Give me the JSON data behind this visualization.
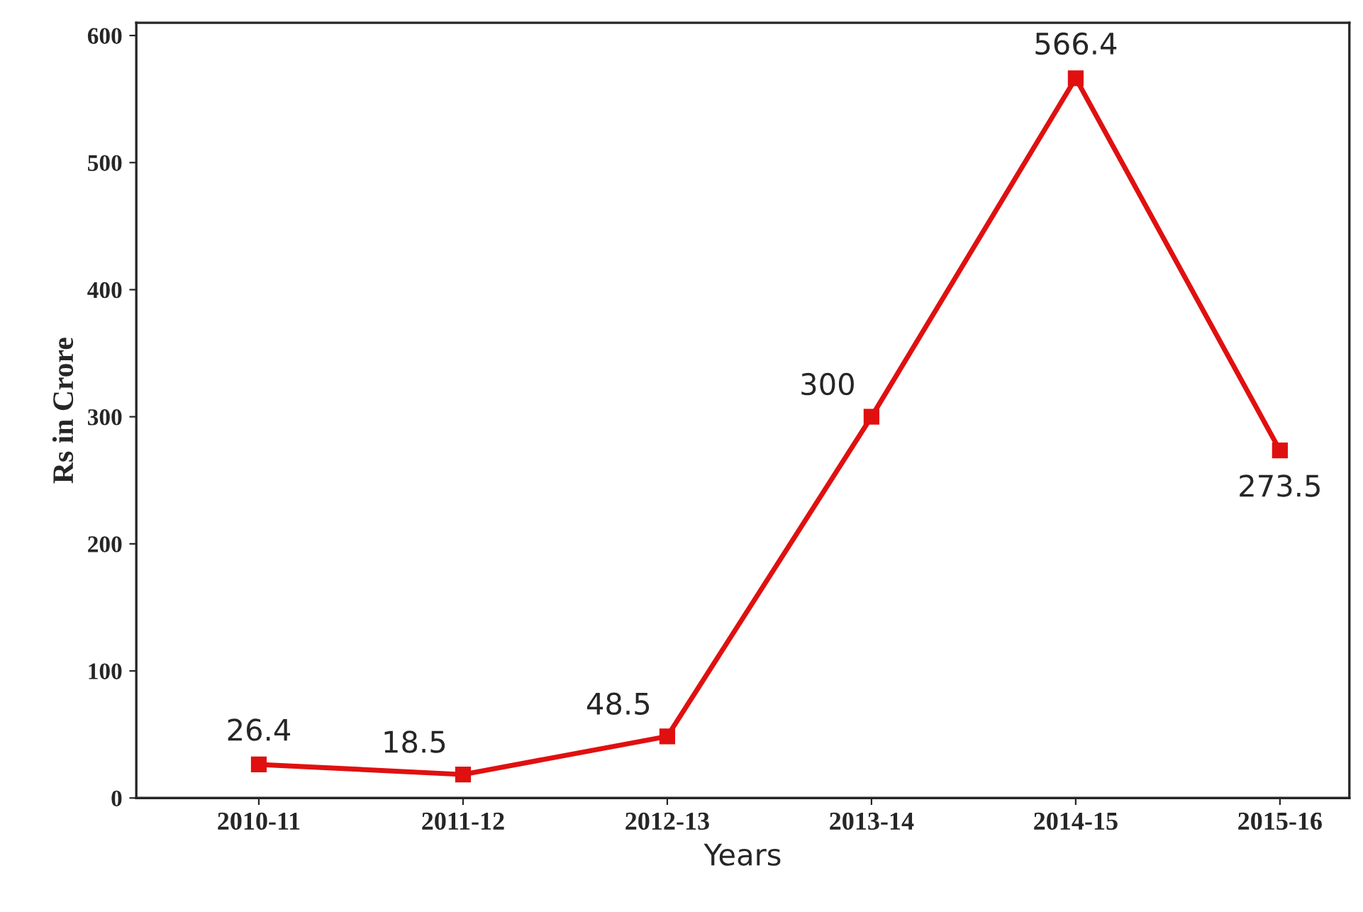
{
  "chart_data": {
    "type": "line",
    "xlabel": "Years",
    "ylabel": "Rs in Crore",
    "categories": [
      "2010-11",
      "2011-12",
      "2012-13",
      "2013-14",
      "2014-15",
      "2015-16"
    ],
    "series": [
      {
        "color": "#e01010",
        "values": [
          26.4,
          18.5,
          48.5,
          300,
          566.4,
          273.5
        ]
      }
    ],
    "ylim": [
      0,
      610
    ],
    "yticks": [
      0,
      100,
      200,
      300,
      400,
      500,
      600
    ],
    "data_labels": true,
    "marker": "square",
    "line_style": "solid",
    "grid": false,
    "legend": false
  }
}
